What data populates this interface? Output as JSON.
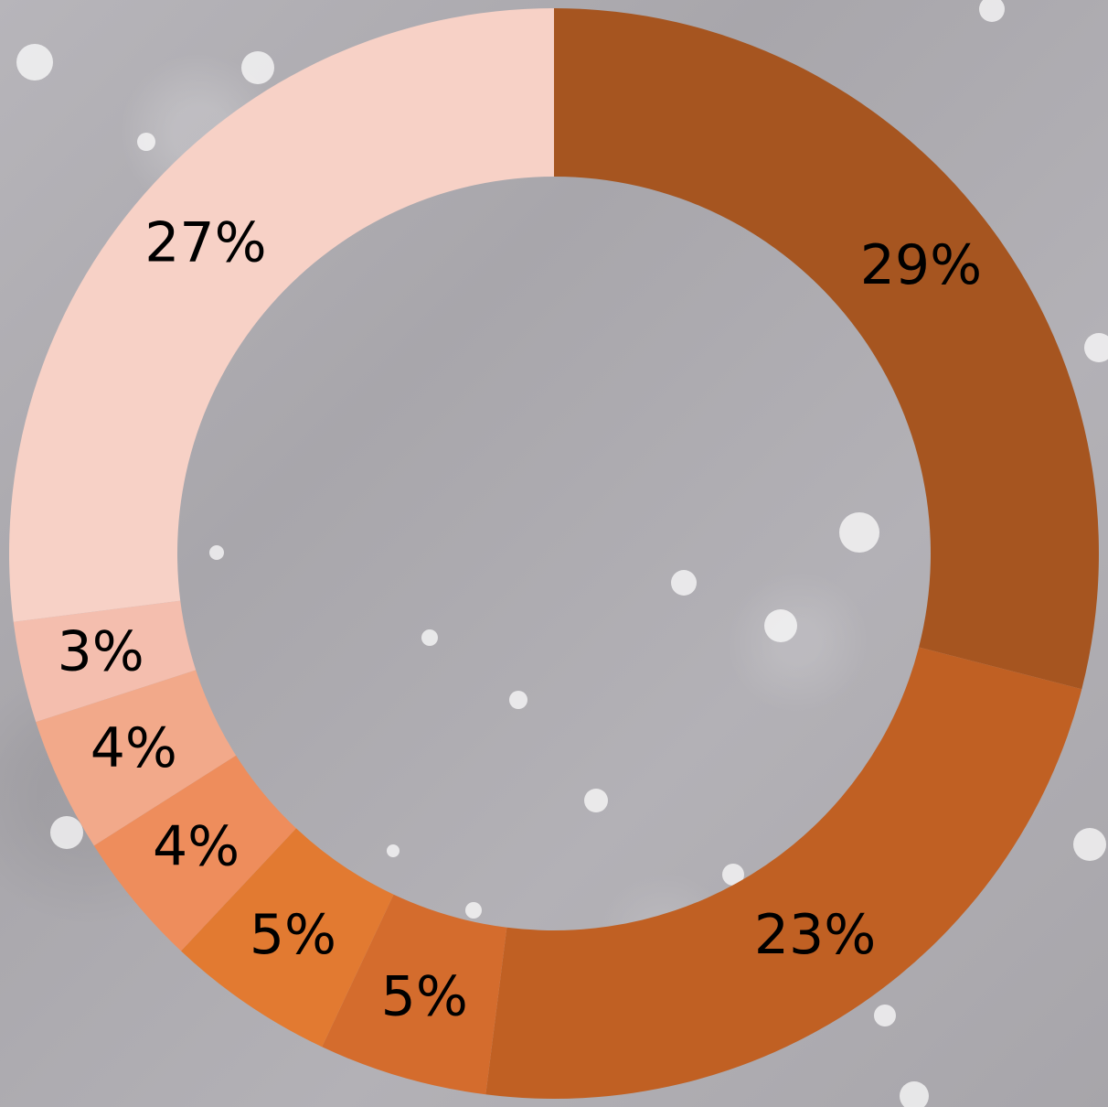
{
  "chart_data": {
    "type": "pie",
    "variant": "donut",
    "grid": false,
    "legend": "none",
    "values": [
      29,
      23,
      5,
      5,
      4,
      4,
      3,
      27
    ],
    "labels": [
      "29%",
      "23%",
      "5%",
      "5%",
      "4%",
      "4%",
      "3%",
      "27%"
    ],
    "colors": [
      "#A65520",
      "#C06023",
      "#D46C2D",
      "#E27A31",
      "#EE8D5C",
      "#F2A98A",
      "#F4BEAE",
      "#F7D1C6"
    ]
  }
}
